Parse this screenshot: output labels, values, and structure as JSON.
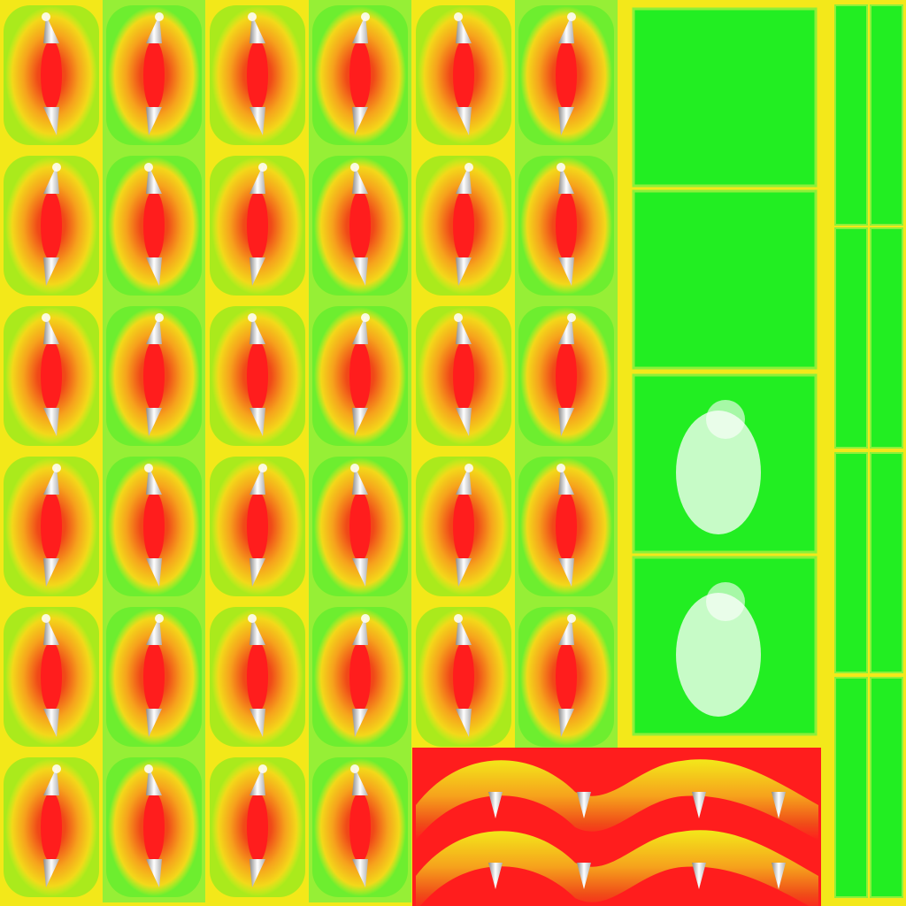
{
  "atlas": {
    "grid_columns": 6,
    "grid_rows": 6,
    "wave_strips": 2,
    "green_panels": 4,
    "side_bar_columns": 2,
    "side_bar_rows": 4,
    "colors": {
      "base_yellow": "#f3e81a",
      "orange": "#f6a21c",
      "deep_orange": "#f06a1a",
      "red": "#ff1d1d",
      "green": "#22ee22",
      "light_green": "#8cf03a",
      "white": "#ffffff",
      "silver": "#c9c9c9"
    }
  }
}
